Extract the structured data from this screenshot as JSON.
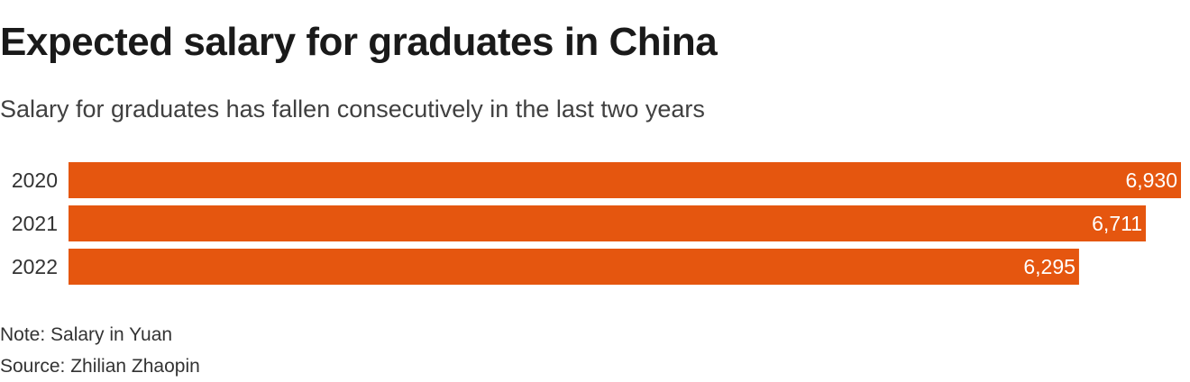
{
  "title": "Expected salary for graduates in China",
  "subtitle": "Salary for graduates has fallen consecutively in the last two years",
  "note": "Note: Salary in Yuan",
  "source": "Source: Zhilian Zhaopin",
  "colors": {
    "bar": "#e5560f",
    "value_label": "#ffffff",
    "category_label": "#333333"
  },
  "chart_data": {
    "type": "bar",
    "orientation": "horizontal",
    "categories": [
      "2020",
      "2021",
      "2022"
    ],
    "values": [
      6930,
      6711,
      6295
    ],
    "value_labels": [
      "6,930",
      "6,711",
      "6,295"
    ],
    "title": "Expected salary for graduates in China",
    "xlabel": "",
    "ylabel": "",
    "xlim": [
      0,
      6930
    ],
    "grid": false,
    "legend": "none"
  }
}
